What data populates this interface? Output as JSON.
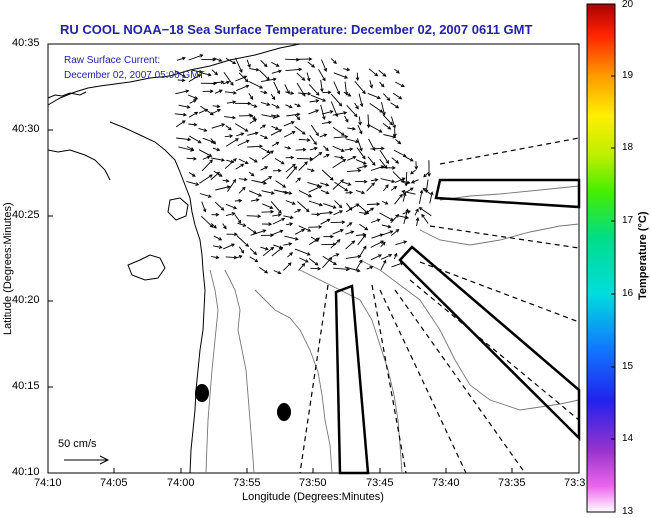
{
  "title": "RU COOL  NOAA−18  Sea Surface Temperature:  December 02, 2007 0611 GMT",
  "annotation": {
    "line1": "Raw Surface Current:",
    "line2": "December 02, 2007 05:00 GMT"
  },
  "scale_label": "50 cm/s",
  "x_axis": {
    "label": "Longitude (Degrees:Minutes)",
    "ticks": [
      "74:10",
      "74:05",
      "74:00",
      "73:55",
      "73:50",
      "73:45",
      "73:40",
      "73:35",
      "73:3"
    ]
  },
  "y_axis": {
    "label": "Latitude (Degrees:Minutes)",
    "ticks": [
      "40:35",
      "40:30",
      "40:25",
      "40:20",
      "40:15",
      "40:10"
    ]
  },
  "colorbar": {
    "title": "Temperature (°C)",
    "ticks": [
      "20",
      "19",
      "18",
      "17",
      "16",
      "15",
      "14",
      "13"
    ],
    "min": 13,
    "max": 20
  }
}
